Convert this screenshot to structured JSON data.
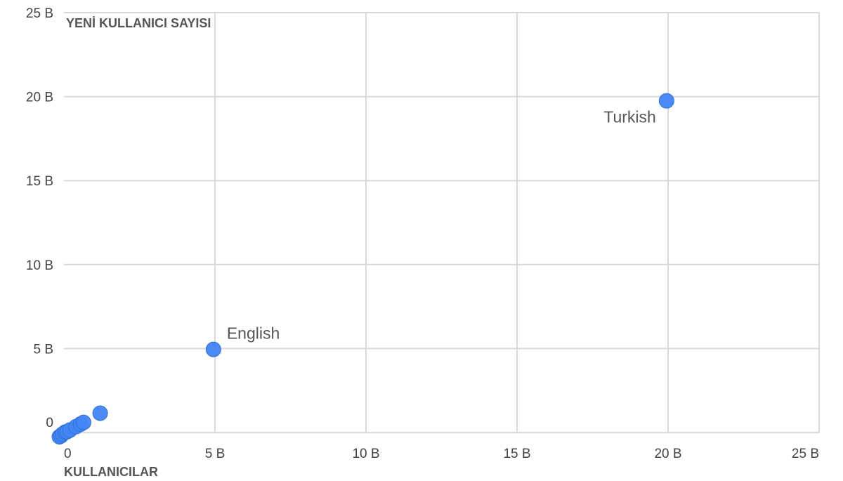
{
  "chart_data": {
    "type": "scatter",
    "xlabel": "KULLANICILAR",
    "ylabel": "YENİ KULLANICI SAYISI",
    "xlim": [
      0,
      25000000000
    ],
    "ylim": [
      0,
      25000000000
    ],
    "x_ticks": [
      {
        "value": 0,
        "label": "0"
      },
      {
        "value": 5000000000,
        "label": "5 B"
      },
      {
        "value": 10000000000,
        "label": "10 B"
      },
      {
        "value": 15000000000,
        "label": "15 B"
      },
      {
        "value": 20000000000,
        "label": "20 B"
      },
      {
        "value": 25000000000,
        "label": "25 B"
      }
    ],
    "y_ticks": [
      {
        "value": 0,
        "label": "0"
      },
      {
        "value": 5000000000,
        "label": "5 B"
      },
      {
        "value": 10000000000,
        "label": "10 B"
      },
      {
        "value": 15000000000,
        "label": "15 B"
      },
      {
        "value": 20000000000,
        "label": "20 B"
      },
      {
        "value": 25000000000,
        "label": "25 B"
      }
    ],
    "grid": true,
    "legend": "none",
    "color": "#4285f4",
    "points": [
      {
        "x": 19950000000,
        "y": 19750000000,
        "label": "Turkish"
      },
      {
        "x": 4950000000,
        "y": 4950000000,
        "label": "English"
      },
      {
        "x": 1200000000,
        "y": 1150000000,
        "label": ""
      },
      {
        "x": 650000000,
        "y": 600000000,
        "label": ""
      },
      {
        "x": 550000000,
        "y": 500000000,
        "label": ""
      },
      {
        "x": 400000000,
        "y": 350000000,
        "label": ""
      },
      {
        "x": 200000000,
        "y": 150000000,
        "label": ""
      },
      {
        "x": 100000000,
        "y": 50000000,
        "label": ""
      },
      {
        "x": 40000000,
        "y": 20000000,
        "label": ""
      },
      {
        "x": -50000000,
        "y": -100000000,
        "label": ""
      },
      {
        "x": -100000000,
        "y": -200000000,
        "label": ""
      },
      {
        "x": -150000000,
        "y": -250000000,
        "label": ""
      }
    ]
  }
}
